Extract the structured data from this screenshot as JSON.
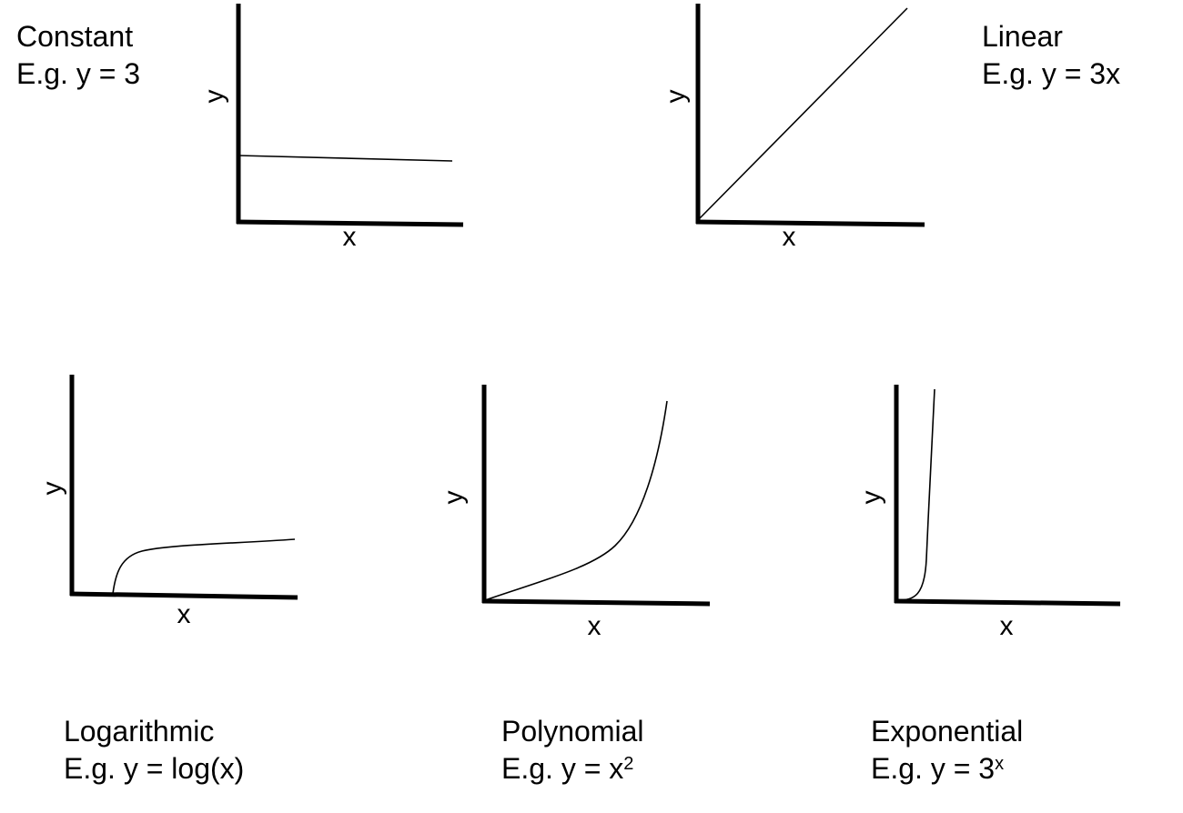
{
  "panels": [
    {
      "id": "constant",
      "name": "Constant",
      "example_prefix": "E.g. y = ",
      "example_base": "3",
      "example_sup": "",
      "x_label": "x",
      "y_label": "y"
    },
    {
      "id": "linear",
      "name": "Linear",
      "example_prefix": "E.g. y = ",
      "example_base": "3x",
      "example_sup": "",
      "x_label": "x",
      "y_label": "y"
    },
    {
      "id": "logarithmic",
      "name": "Logarithmic",
      "example_prefix": "E.g. y = ",
      "example_base": "log(x)",
      "example_sup": "",
      "x_label": "x",
      "y_label": "y"
    },
    {
      "id": "polynomial",
      "name": "Polynomial",
      "example_prefix": "E.g. y = ",
      "example_base": "x",
      "example_sup": "2",
      "x_label": "x",
      "y_label": "y"
    },
    {
      "id": "exponential",
      "name": "Exponential",
      "example_prefix": "E.g. y = ",
      "example_base": "3",
      "example_sup": "x",
      "x_label": "x",
      "y_label": "y"
    }
  ],
  "colors": {
    "line": "#000000",
    "background": "#ffffff"
  }
}
